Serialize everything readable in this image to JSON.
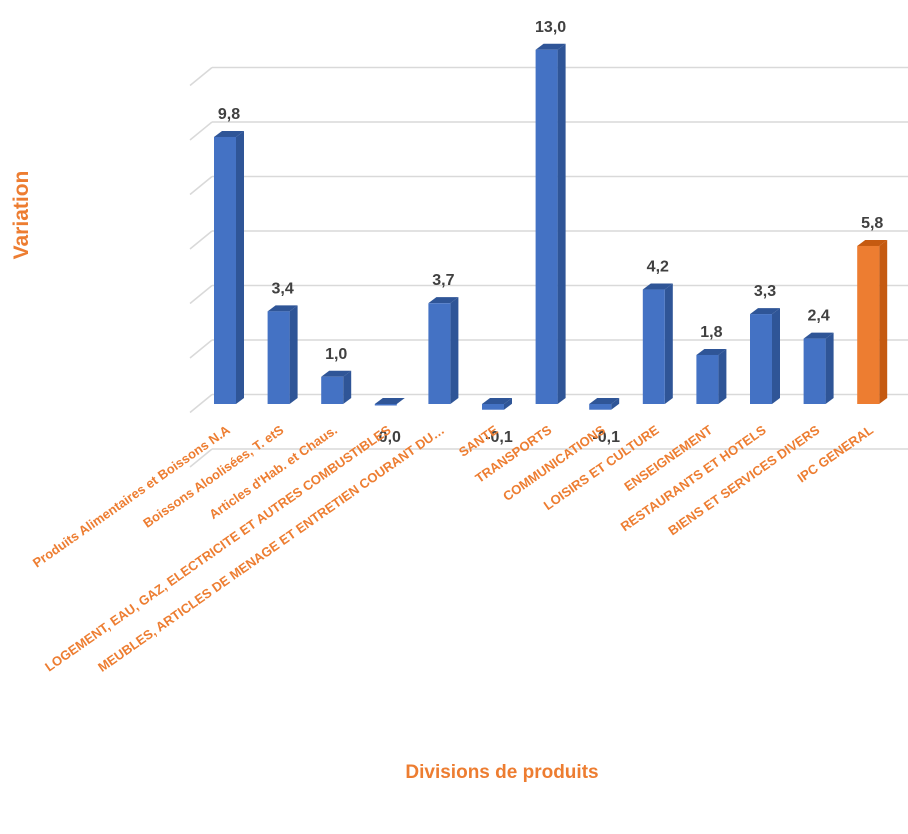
{
  "chart_data": {
    "type": "bar",
    "xlabel": "Divisions de produits",
    "ylabel": "Variation",
    "categories": [
      "Produits Alimentaires et Boissons N.A",
      "Boissons Aloolisées, T. etS",
      "Articles d'Hab. et Chaus.",
      "LOGEMENT, EAU, GAZ, ELECTRICITE ET AUTRES COMBUSTIBLES",
      "MEUBLES, ARTICLES DE MENAGE ET ENTRETIEN COURANT DU…",
      "SANTE",
      "TRANSPORTS",
      "COMMUNICATIONS",
      "LOISIRS ET CULTURE",
      "ENSEIGNEMENT",
      "RESTAURANTS ET HOTELS",
      "BIENS ET SERVICES DIVERS",
      "IPC GENERAL"
    ],
    "values": [
      9.8,
      3.4,
      1.0,
      0.0,
      3.7,
      -0.1,
      13.0,
      -0.1,
      4.2,
      1.8,
      3.3,
      2.4,
      5.8
    ],
    "value_labels": [
      "9,8",
      "3,4",
      "1,0",
      "0,0",
      "3,7",
      "-0,1",
      "13,0",
      "-0,1",
      "4,2",
      "1,8",
      "3,3",
      "2,4",
      "5,8"
    ],
    "ylim": [
      0,
      14
    ],
    "grid": true,
    "colors": {
      "bar": "#4472C4",
      "bar_side": "#2F5597",
      "highlight": "#ED7D31",
      "highlight_side": "#C55A11",
      "label": "#ED7D31",
      "value_text": "#404040",
      "grid": "#D9D9D9"
    },
    "highlight_index": 12
  }
}
